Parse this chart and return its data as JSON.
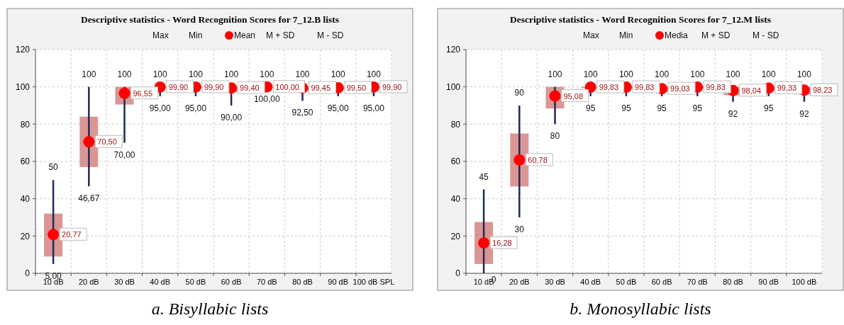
{
  "chart_data": [
    {
      "type": "box",
      "title": "Descriptive statistics - Word Recognition Scores for 7_12.B lists",
      "categories": [
        "10 dB",
        "20 dB",
        "30 dB",
        "40 dB",
        "50 dB",
        "60 dB",
        "70 dB",
        "80 dB",
        "90 dB",
        "100 dB SPL"
      ],
      "ylim": [
        0,
        120
      ],
      "yticks": [
        0,
        20,
        40,
        60,
        80,
        100,
        120
      ],
      "grid": true,
      "series": [
        {
          "color": "#d99694",
          "boxes": [
            {
              "low": 5,
              "q1": 9,
              "q3": 32,
              "high": 50,
              "mean": 20.77
            },
            {
              "low": 46.67,
              "q1": 57,
              "q3": 84,
              "high": 100,
              "mean": 70.5
            },
            {
              "low": 70,
              "q1": 90.5,
              "q3": 100,
              "high": 100,
              "mean": 96.55
            },
            {
              "low": 95,
              "q1": 99.4,
              "q3": 100,
              "high": 100,
              "mean": 99.9
            },
            {
              "low": 95,
              "q1": 99.4,
              "q3": 100,
              "high": 100,
              "mean": 99.9
            },
            {
              "low": 90,
              "q1": 97.2,
              "q3": 100,
              "high": 100,
              "mean": 99.4
            },
            {
              "low": 100,
              "q1": 100,
              "q3": 100,
              "high": 100,
              "mean": 100
            },
            {
              "low": 92.5,
              "q1": 97.7,
              "q3": 100,
              "high": 100,
              "mean": 99.45
            },
            {
              "low": 95,
              "q1": 98.3,
              "q3": 100,
              "high": 100,
              "mean": 99.5
            },
            {
              "low": 95,
              "q1": 99.4,
              "q3": 100,
              "high": 100,
              "mean": 99.9
            }
          ]
        }
      ],
      "annotations": [
        "Max",
        "Min",
        "Mean",
        "M + SD",
        "M - SD",
        {
          "text": "50",
          "x": "10 dB",
          "y": 50
        },
        {
          "text": "100",
          "x": "20 dB",
          "y": 100
        },
        {
          "text": "100",
          "x": "30 dB",
          "y": 100
        },
        {
          "text": "100",
          "x": "40 dB",
          "y": 100
        },
        {
          "text": "100",
          "x": "50 dB",
          "y": 100
        },
        {
          "text": "100",
          "x": "60 dB",
          "y": 100
        },
        {
          "text": "100",
          "x": "70 dB",
          "y": 100
        },
        {
          "text": "100",
          "x": "80 dB",
          "y": 100
        },
        {
          "text": "100",
          "x": "90 dB",
          "y": 100
        },
        {
          "text": "100",
          "x": "100 dB SPL",
          "y": 100
        },
        {
          "text": "5,00",
          "x": "10 dB",
          "y": 5
        },
        {
          "text": "46,67",
          "x": "20 dB",
          "y": 46.67
        },
        {
          "text": "70,00",
          "x": "30 dB",
          "y": 70
        },
        {
          "text": "95,00",
          "x": "40 dB",
          "y": 95
        },
        {
          "text": "95,00",
          "x": "50 dB",
          "y": 95
        },
        {
          "text": "90,00",
          "x": "60 dB",
          "y": 90
        },
        {
          "text": "100,00",
          "x": "70 dB",
          "y": 100
        },
        {
          "text": "92,50",
          "x": "80 dB",
          "y": 92.5
        },
        {
          "text": "95,00",
          "x": "90 dB",
          "y": 95
        },
        {
          "text": "95,00",
          "x": "100 dB SPL",
          "y": 95
        },
        {
          "text": "20,77",
          "x": "10 dB",
          "y": 20.77
        },
        {
          "text": "70,50",
          "x": "20 dB",
          "y": 70.5
        },
        {
          "text": "96,55",
          "x": "30 dB",
          "y": 96.55
        },
        {
          "text": "99,90",
          "x": "40 dB",
          "y": 99.9
        },
        {
          "text": "99,90",
          "x": "50 dB",
          "y": 99.9
        },
        {
          "text": "99,40",
          "x": "60 dB",
          "y": 99.4
        },
        {
          "text": "100,00",
          "x": "70 dB",
          "y": 100
        },
        {
          "text": "99,45",
          "x": "80 dB",
          "y": 99.45
        },
        {
          "text": "99,50",
          "x": "90 dB",
          "y": 99.5
        },
        {
          "text": "99,90",
          "x": "100 dB SPL",
          "y": 99.9
        },
        "a. Bisyllabic lists"
      ]
    },
    {
      "type": "box",
      "title": "Descriptive  statistics - Word Recognition Scores for 7_12.M lists",
      "categories": [
        "10 dB",
        "20 dB",
        "30 dB",
        "40 dB",
        "50 dB",
        "60 dB",
        "70 dB",
        "80 dB",
        "90 dB",
        "100 dB"
      ],
      "ylim": [
        0,
        120
      ],
      "yticks": [
        0,
        20,
        40,
        60,
        80,
        100,
        120
      ],
      "grid": true,
      "series": [
        {
          "color": "#d99694",
          "boxes": [
            {
              "low": 0,
              "q1": 5,
              "q3": 27.5,
              "high": 45,
              "mean": 16.28
            },
            {
              "low": 30,
              "q1": 46.6,
              "q3": 75,
              "high": 90,
              "mean": 60.78
            },
            {
              "low": 80,
              "q1": 88.4,
              "q3": 100,
              "high": 100,
              "mean": 95.08
            },
            {
              "low": 95,
              "q1": 99.3,
              "q3": 100,
              "high": 100,
              "mean": 99.83
            },
            {
              "low": 95,
              "q1": 99.3,
              "q3": 100,
              "high": 100,
              "mean": 99.83
            },
            {
              "low": 95,
              "q1": 97.2,
              "q3": 100,
              "high": 100,
              "mean": 99.03
            },
            {
              "low": 95,
              "q1": 99.3,
              "q3": 100,
              "high": 100,
              "mean": 99.83
            },
            {
              "low": 92,
              "q1": 95.5,
              "q3": 100,
              "high": 100,
              "mean": 98.04
            },
            {
              "low": 95,
              "q1": 97.7,
              "q3": 100,
              "high": 100,
              "mean": 99.33
            },
            {
              "low": 92,
              "q1": 96,
              "q3": 100,
              "high": 100,
              "mean": 98.23
            }
          ]
        }
      ],
      "annotations": [
        "Max",
        "Min",
        "Media",
        "M + SD",
        "M - SD",
        {
          "text": "45",
          "x": "10 dB",
          "y": 45
        },
        {
          "text": "90",
          "x": "20 dB",
          "y": 90
        },
        {
          "text": "100",
          "x": "30 dB",
          "y": 100
        },
        {
          "text": "100",
          "x": "40 dB",
          "y": 100
        },
        {
          "text": "100",
          "x": "50 dB",
          "y": 100
        },
        {
          "text": "100",
          "x": "60 dB",
          "y": 100
        },
        {
          "text": "100",
          "x": "70 dB",
          "y": 100
        },
        {
          "text": "100",
          "x": "80 dB",
          "y": 100
        },
        {
          "text": "100",
          "x": "90 dB",
          "y": 100
        },
        {
          "text": "100",
          "x": "100 dB",
          "y": 100
        },
        {
          "text": "0",
          "x": "10 dB",
          "y": 0
        },
        {
          "text": "30",
          "x": "20 dB",
          "y": 30
        },
        {
          "text": "80",
          "x": "30 dB",
          "y": 80
        },
        {
          "text": "95",
          "x": "40 dB",
          "y": 95
        },
        {
          "text": "95",
          "x": "50 dB",
          "y": 95
        },
        {
          "text": "95",
          "x": "60 dB",
          "y": 95
        },
        {
          "text": "95",
          "x": "70 dB",
          "y": 95
        },
        {
          "text": "92",
          "x": "80 dB",
          "y": 92
        },
        {
          "text": "95",
          "x": "90 dB",
          "y": 95
        },
        {
          "text": "92",
          "x": "100 dB",
          "y": 92
        },
        {
          "text": "16,28",
          "x": "10 dB",
          "y": 16.28
        },
        {
          "text": "60,78",
          "x": "20 dB",
          "y": 60.78
        },
        {
          "text": "95,08",
          "x": "30 dB",
          "y": 95.08
        },
        {
          "text": "99,83",
          "x": "40 dB",
          "y": 99.83
        },
        {
          "text": "99,83",
          "x": "50 dB",
          "y": 99.83
        },
        {
          "text": "99,03",
          "x": "60 dB",
          "y": 99.03
        },
        {
          "text": "99,83",
          "x": "70 dB",
          "y": 99.83
        },
        {
          "text": "98,04",
          "x": "80 dB",
          "y": 98.04
        },
        {
          "text": "99,33",
          "x": "90 dB",
          "y": 99.33
        },
        {
          "text": "98,23",
          "x": "100 dB",
          "y": 98.23
        },
        "b. Monosyllabic lists"
      ]
    }
  ]
}
